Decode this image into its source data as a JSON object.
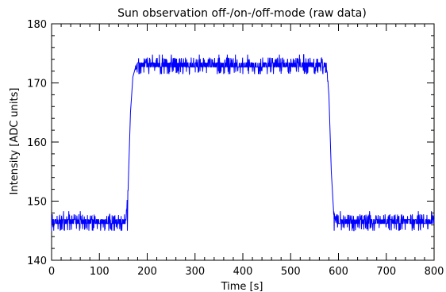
{
  "chart_data": {
    "type": "line",
    "title": "Sun observation off-/on-/off-mode (raw data)",
    "xlabel": "Time [s]",
    "ylabel": "Intensity [ADC units]",
    "xlim": [
      0,
      800
    ],
    "ylim": [
      140,
      180
    ],
    "x_ticks": [
      0,
      100,
      200,
      300,
      400,
      500,
      600,
      700,
      800
    ],
    "y_ticks": [
      140,
      150,
      160,
      170,
      180
    ],
    "x_tick_labels": [
      "0",
      "100",
      "200",
      "300",
      "400",
      "500",
      "600",
      "700",
      "800"
    ],
    "y_tick_labels": [
      "140",
      "150",
      "160",
      "170",
      "180"
    ],
    "grid": false,
    "line_color": "#0000ff",
    "series": [
      {
        "x": [
          0,
          155,
          160,
          165,
          170,
          175,
          180,
          575,
          580,
          585,
          590,
          595,
          800
        ],
        "y": [
          146.5,
          146.5,
          152,
          165,
          171,
          172.5,
          173,
          173,
          168,
          155,
          148,
          146.5,
          146.5
        ],
        "noise_segments": [
          {
            "x": [
              0,
              160
            ],
            "low": 145,
            "high": 147.8
          },
          {
            "x": [
              175,
              578
            ],
            "low": 171.5,
            "high": 174.3
          },
          {
            "x": [
              590,
              800
            ],
            "low": 145,
            "high": 147.8
          }
        ]
      }
    ]
  }
}
